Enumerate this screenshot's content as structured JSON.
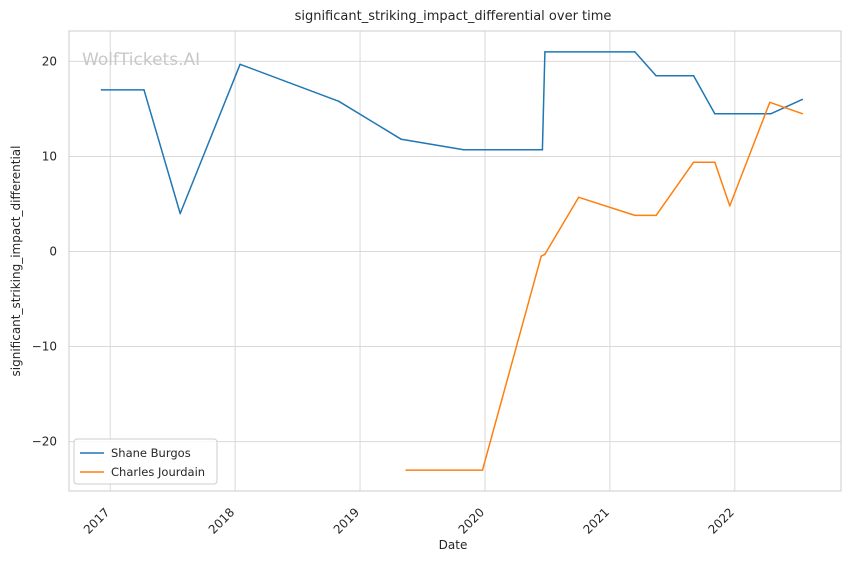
{
  "chart_data": {
    "type": "line",
    "title": "significant_striking_impact_differential over time",
    "xlabel": "Date",
    "ylabel": "significant_striking_impact_differential",
    "watermark": "WolfTickets.AI",
    "x_ticks": [
      "2017",
      "2018",
      "2019",
      "2020",
      "2021",
      "2022"
    ],
    "y_ticks": [
      "20",
      "10",
      "0",
      "−10",
      "−20"
    ],
    "x_range": [
      2016.67,
      2022.85
    ],
    "ylim": [
      -25.2,
      23.2
    ],
    "grid": true,
    "legend_position": "lower-left",
    "series": [
      {
        "name": "Shane Burgos",
        "color": "#1f77b4",
        "points": [
          [
            2016.93,
            17.0
          ],
          [
            2017.27,
            17.0
          ],
          [
            2017.56,
            4.0
          ],
          [
            2018.04,
            19.7
          ],
          [
            2018.83,
            15.8
          ],
          [
            2019.33,
            11.8
          ],
          [
            2019.83,
            10.7
          ],
          [
            2020.46,
            10.7
          ],
          [
            2020.48,
            21.0
          ],
          [
            2021.2,
            21.0
          ],
          [
            2021.37,
            18.5
          ],
          [
            2021.67,
            18.5
          ],
          [
            2021.84,
            14.5
          ],
          [
            2022.29,
            14.5
          ],
          [
            2022.54,
            16.0
          ]
        ]
      },
      {
        "name": "Charles Jourdain",
        "color": "#ff7f0e",
        "points": [
          [
            2019.37,
            -23.0
          ],
          [
            2019.98,
            -23.0
          ],
          [
            2020.45,
            -0.5
          ],
          [
            2020.48,
            -0.3
          ],
          [
            2020.75,
            5.7
          ],
          [
            2021.2,
            3.8
          ],
          [
            2021.37,
            3.8
          ],
          [
            2021.67,
            9.4
          ],
          [
            2021.84,
            9.4
          ],
          [
            2021.96,
            4.8
          ],
          [
            2022.28,
            15.7
          ],
          [
            2022.54,
            14.5
          ]
        ]
      }
    ]
  }
}
